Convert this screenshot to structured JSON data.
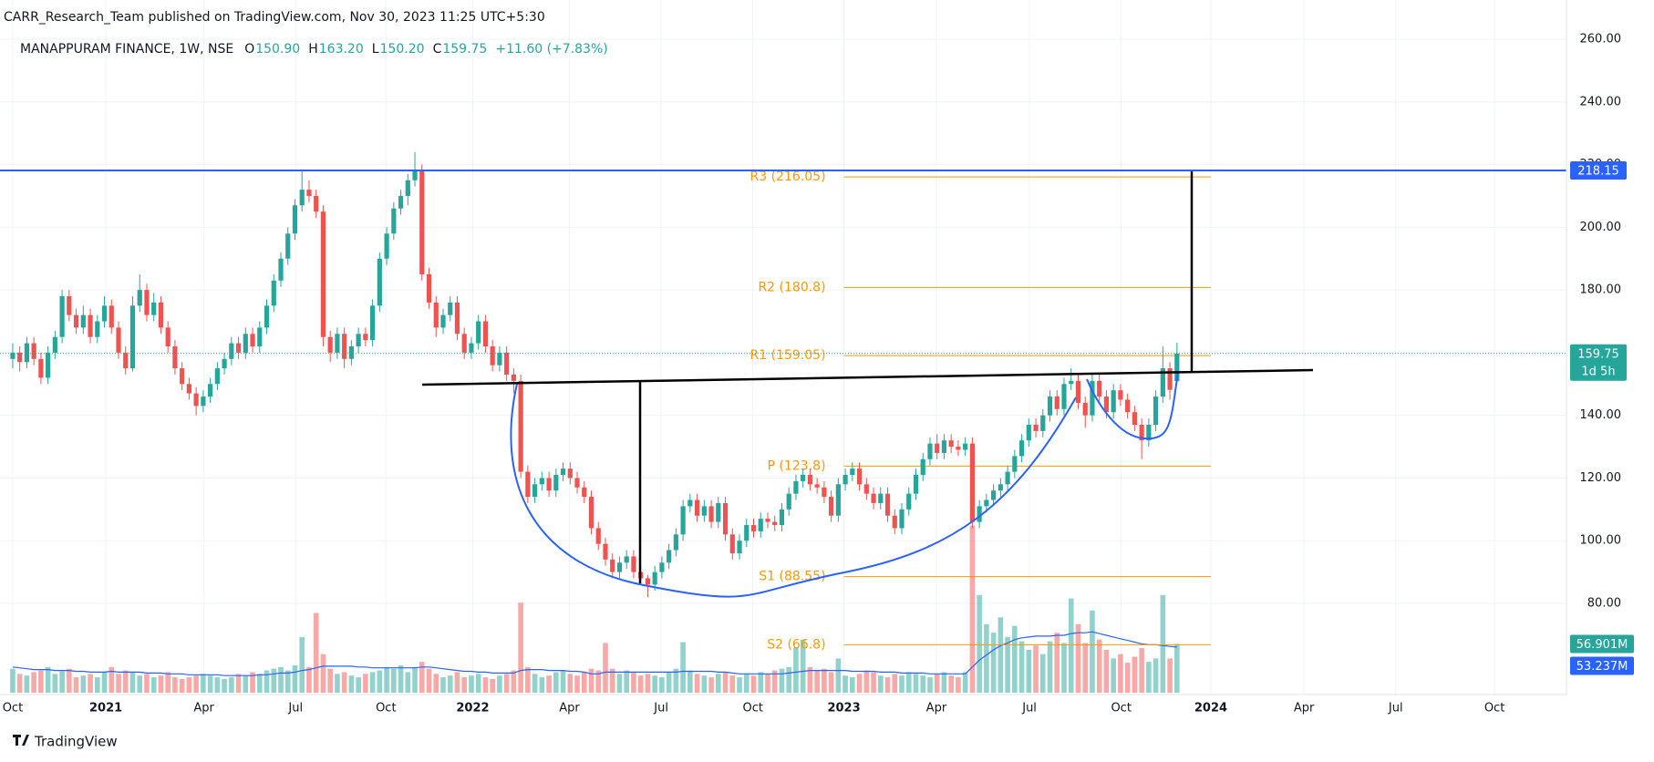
{
  "chart_data": {
    "type": "candlestick",
    "attribution": "CARR_Research_Team published on TradingView.com, Nov 30, 2023 11:25 UTC+5:30",
    "symbol": "MANAPPURAM FINANCE, 1W, NSE",
    "legend": [
      {
        "key": "O",
        "value": "150.90"
      },
      {
        "key": "H",
        "value": "163.20"
      },
      {
        "key": "L",
        "value": "150.20"
      },
      {
        "key": "C",
        "value": "159.75"
      },
      {
        "key": "",
        "value": "+11.60 (+7.83%)"
      }
    ],
    "footer": "TradingView",
    "up_color": "#26a69a",
    "down_color": "#ef5350",
    "volume_up_color": "rgba(38,166,154,0.5)",
    "volume_down_color": "rgba(239,83,80,0.5)",
    "volume_ma_color": "#2962ff",
    "grid": true,
    "xlim": [
      -1.8,
      220.2
    ],
    "xticks": [
      {
        "value": 0,
        "label": "Oct"
      },
      {
        "value": 13.2,
        "label": "2021"
      },
      {
        "value": 27.1,
        "label": "Apr"
      },
      {
        "value": 40.1,
        "label": "Jul"
      },
      {
        "value": 52.9,
        "label": "Oct"
      },
      {
        "value": 65.2,
        "label": "2022"
      },
      {
        "value": 78.9,
        "label": "Apr"
      },
      {
        "value": 91.9,
        "label": "Jul"
      },
      {
        "value": 104.9,
        "label": "Oct"
      },
      {
        "value": 117.8,
        "label": "2023"
      },
      {
        "value": 130.9,
        "label": "Apr"
      },
      {
        "value": 144.1,
        "label": "Jul"
      },
      {
        "value": 157.1,
        "label": "Oct"
      },
      {
        "value": 169.8,
        "label": "2024"
      },
      {
        "value": 183,
        "label": "Apr"
      },
      {
        "value": 196,
        "label": "Jul"
      },
      {
        "value": 210,
        "label": "Oct"
      }
    ],
    "ylim": [
      51.5,
      266.7
    ],
    "yticks": [
      {
        "value": 80,
        "label": "80.00"
      },
      {
        "value": 100,
        "label": "100.00"
      },
      {
        "value": 120,
        "label": "120.00"
      },
      {
        "value": 140,
        "label": "140.00"
      },
      {
        "value": 160,
        "label": "160.00"
      },
      {
        "value": 180,
        "label": "180.00"
      },
      {
        "value": 200,
        "label": "200.00"
      },
      {
        "value": 220,
        "label": "220.00"
      },
      {
        "value": 240,
        "label": "240.00"
      },
      {
        "value": 260,
        "label": "260.00"
      }
    ],
    "volume_ylim": [
      0,
      787
    ],
    "hline": {
      "value": 218.15,
      "label": "218.15",
      "color": "#2962ff"
    },
    "last_price": {
      "value": 159.75,
      "label": "159.75",
      "countdown": "1d 5h"
    },
    "pivot_color": "#ff9800",
    "pivot_range": [
      117.8,
      169.8
    ],
    "pivots": [
      {
        "value": 216.05,
        "label": "R3 (216.05)"
      },
      {
        "value": 180.8,
        "label": "R2 (180.8)"
      },
      {
        "value": 159.05,
        "label": "R1 (159.05)"
      },
      {
        "value": 123.8,
        "label": "P (123.8)"
      },
      {
        "value": 88.55,
        "label": "S1 (88.55)"
      },
      {
        "value": 66.8,
        "label": "S2 (66.8)"
      }
    ],
    "volume_label": "56.901M",
    "volume_ma_label": "53.237M",
    "candles": [
      [
        158,
        163,
        155,
        160
      ],
      [
        160,
        162,
        154,
        157
      ],
      [
        157,
        165,
        155,
        163
      ],
      [
        163,
        165,
        156,
        158
      ],
      [
        158,
        160,
        150,
        152
      ],
      [
        152,
        162,
        150,
        160
      ],
      [
        160,
        167,
        158,
        165
      ],
      [
        165,
        180,
        163,
        178
      ],
      [
        178,
        180,
        170,
        172
      ],
      [
        172,
        174,
        166,
        168
      ],
      [
        168,
        175,
        166,
        172
      ],
      [
        172,
        174,
        163,
        165
      ],
      [
        165,
        172,
        163,
        170
      ],
      [
        170,
        178,
        168,
        175
      ],
      [
        175,
        177,
        166,
        168
      ],
      [
        168,
        170,
        158,
        160
      ],
      [
        160,
        162,
        153,
        155
      ],
      [
        155,
        178,
        154,
        175
      ],
      [
        175,
        185,
        173,
        180
      ],
      [
        180,
        182,
        170,
        172
      ],
      [
        172,
        179,
        170,
        176
      ],
      [
        176,
        178,
        166,
        168
      ],
      [
        168,
        170,
        160,
        162
      ],
      [
        162,
        164,
        153,
        155
      ],
      [
        155,
        157,
        148,
        150
      ],
      [
        150,
        152,
        145,
        147
      ],
      [
        147,
        149,
        140,
        143
      ],
      [
        143,
        148,
        141,
        146
      ],
      [
        146,
        152,
        144,
        150
      ],
      [
        150,
        157,
        148,
        155
      ],
      [
        155,
        160,
        153,
        158
      ],
      [
        158,
        165,
        156,
        163
      ],
      [
        163,
        165,
        158,
        160
      ],
      [
        160,
        168,
        158,
        166
      ],
      [
        166,
        168,
        160,
        162
      ],
      [
        162,
        170,
        160,
        168
      ],
      [
        168,
        177,
        166,
        175
      ],
      [
        175,
        185,
        173,
        183
      ],
      [
        183,
        192,
        181,
        190
      ],
      [
        190,
        200,
        188,
        198
      ],
      [
        198,
        209,
        196,
        207
      ],
      [
        207,
        218,
        205,
        212
      ],
      [
        212,
        215,
        208,
        210
      ],
      [
        210,
        212,
        203,
        205
      ],
      [
        205,
        207,
        162,
        165
      ],
      [
        165,
        167,
        157,
        160
      ],
      [
        160,
        168,
        158,
        166
      ],
      [
        166,
        168,
        155,
        158
      ],
      [
        158,
        164,
        156,
        162
      ],
      [
        162,
        168,
        160,
        166
      ],
      [
        166,
        168,
        162,
        164
      ],
      [
        164,
        177,
        162,
        175
      ],
      [
        175,
        192,
        173,
        190
      ],
      [
        190,
        200,
        188,
        198
      ],
      [
        198,
        208,
        196,
        206
      ],
      [
        206,
        212,
        204,
        210
      ],
      [
        210,
        217,
        207,
        215
      ],
      [
        215,
        224,
        213,
        218
      ],
      [
        218,
        220,
        183,
        185
      ],
      [
        185,
        187,
        174,
        176
      ],
      [
        176,
        178,
        165,
        168
      ],
      [
        168,
        174,
        166,
        172
      ],
      [
        172,
        178,
        170,
        176
      ],
      [
        176,
        178,
        164,
        166
      ],
      [
        166,
        168,
        158,
        160
      ],
      [
        160,
        165,
        158,
        163
      ],
      [
        163,
        172,
        161,
        170
      ],
      [
        170,
        172,
        160,
        162
      ],
      [
        162,
        164,
        154,
        156
      ],
      [
        156,
        162,
        154,
        160
      ],
      [
        160,
        162,
        151,
        153
      ],
      [
        153,
        155,
        147,
        151
      ],
      [
        151,
        153,
        120,
        122
      ],
      [
        122,
        124,
        112,
        114
      ],
      [
        114,
        120,
        112,
        118
      ],
      [
        118,
        122,
        116,
        120
      ],
      [
        120,
        122,
        114,
        116
      ],
      [
        116,
        123,
        114,
        121
      ],
      [
        121,
        125,
        119,
        123
      ],
      [
        123,
        125,
        118,
        120
      ],
      [
        120,
        122,
        115,
        117
      ],
      [
        117,
        119,
        112,
        114
      ],
      [
        114,
        116,
        102,
        104
      ],
      [
        104,
        106,
        97,
        99
      ],
      [
        99,
        101,
        92,
        94
      ],
      [
        94,
        96,
        88,
        90
      ],
      [
        90,
        95,
        88,
        93
      ],
      [
        93,
        97,
        91,
        95
      ],
      [
        95,
        97,
        88,
        90
      ],
      [
        90,
        92,
        86,
        88
      ],
      [
        88,
        89,
        82,
        86
      ],
      [
        86,
        92,
        84,
        90
      ],
      [
        90,
        95,
        88,
        93
      ],
      [
        93,
        99,
        91,
        97
      ],
      [
        97,
        104,
        95,
        102
      ],
      [
        102,
        113,
        100,
        111
      ],
      [
        111,
        115,
        109,
        113
      ],
      [
        113,
        115,
        106,
        108
      ],
      [
        108,
        113,
        106,
        111
      ],
      [
        111,
        113,
        104,
        106
      ],
      [
        106,
        114,
        104,
        112
      ],
      [
        112,
        114,
        100,
        102
      ],
      [
        102,
        104,
        94,
        96
      ],
      [
        96,
        102,
        94,
        100
      ],
      [
        100,
        107,
        98,
        105
      ],
      [
        105,
        107,
        101,
        103
      ],
      [
        103,
        109,
        101,
        107
      ],
      [
        107,
        109,
        104,
        106
      ],
      [
        106,
        108,
        103,
        105
      ],
      [
        105,
        112,
        103,
        110
      ],
      [
        110,
        117,
        108,
        115
      ],
      [
        115,
        121,
        113,
        119
      ],
      [
        119,
        123,
        117,
        121
      ],
      [
        121,
        123,
        116,
        118
      ],
      [
        118,
        120,
        115,
        117
      ],
      [
        117,
        119,
        112,
        114
      ],
      [
        114,
        116,
        106,
        108
      ],
      [
        108,
        120,
        106,
        118
      ],
      [
        118,
        123,
        116,
        121
      ],
      [
        121,
        125,
        119,
        123
      ],
      [
        123,
        125,
        116,
        118
      ],
      [
        118,
        120,
        113,
        115
      ],
      [
        115,
        117,
        110,
        112
      ],
      [
        112,
        117,
        110,
        115
      ],
      [
        115,
        117,
        106,
        108
      ],
      [
        108,
        110,
        102,
        104
      ],
      [
        104,
        112,
        102,
        110
      ],
      [
        110,
        117,
        108,
        115
      ],
      [
        115,
        123,
        113,
        121
      ],
      [
        121,
        128,
        119,
        126
      ],
      [
        126,
        133,
        124,
        131
      ],
      [
        131,
        134,
        126,
        128
      ],
      [
        128,
        134,
        126,
        132
      ],
      [
        132,
        134,
        128,
        130
      ],
      [
        130,
        132,
        127,
        129
      ],
      [
        129,
        133,
        127,
        131
      ],
      [
        131,
        133,
        104,
        106
      ],
      [
        106,
        113,
        104,
        111
      ],
      [
        111,
        115,
        109,
        113
      ],
      [
        113,
        118,
        111,
        116
      ],
      [
        116,
        120,
        114,
        118
      ],
      [
        118,
        124,
        116,
        122
      ],
      [
        122,
        129,
        120,
        127
      ],
      [
        127,
        134,
        125,
        132
      ],
      [
        132,
        139,
        130,
        137
      ],
      [
        137,
        139,
        133,
        135
      ],
      [
        135,
        142,
        133,
        140
      ],
      [
        140,
        148,
        138,
        146
      ],
      [
        146,
        148,
        140,
        142
      ],
      [
        142,
        152,
        140,
        150
      ],
      [
        150,
        155,
        148,
        151
      ],
      [
        151,
        153,
        142,
        144
      ],
      [
        144,
        146,
        136,
        140
      ],
      [
        140,
        153,
        138,
        151
      ],
      [
        151,
        153,
        144,
        146
      ],
      [
        146,
        148,
        139,
        141
      ],
      [
        141,
        150,
        139,
        148
      ],
      [
        148,
        150,
        143,
        145
      ],
      [
        145,
        147,
        139,
        141
      ],
      [
        141,
        143,
        135,
        137
      ],
      [
        137,
        139,
        126,
        132
      ],
      [
        132,
        139,
        130,
        137
      ],
      [
        137,
        148,
        135,
        146
      ],
      [
        146,
        162,
        144,
        155
      ],
      [
        155,
        157,
        145,
        148.15
      ],
      [
        150.9,
        163.2,
        150.2,
        159.75
      ]
    ],
    "volume": [
      28,
      22,
      20,
      24,
      26,
      30,
      22,
      25,
      28,
      18,
      20,
      22,
      18,
      24,
      30,
      22,
      26,
      24,
      20,
      22,
      18,
      20,
      24,
      18,
      16,
      18,
      20,
      22,
      20,
      18,
      16,
      18,
      22,
      20,
      24,
      22,
      26,
      28,
      30,
      26,
      32,
      65,
      30,
      93,
      45,
      28,
      22,
      24,
      20,
      18,
      22,
      24,
      26,
      30,
      28,
      32,
      24,
      30,
      36,
      28,
      22,
      18,
      20,
      24,
      18,
      20,
      22,
      18,
      16,
      20,
      22,
      26,
      105,
      30,
      22,
      18,
      20,
      24,
      26,
      22,
      20,
      24,
      28,
      26,
      58,
      28,
      22,
      26,
      24,
      20,
      22,
      20,
      18,
      24,
      28,
      59,
      26,
      22,
      20,
      18,
      22,
      24,
      20,
      18,
      22,
      20,
      24,
      22,
      26,
      28,
      30,
      53,
      62,
      30,
      26,
      28,
      24,
      40,
      20,
      18,
      22,
      26,
      24,
      20,
      18,
      22,
      20,
      24,
      22,
      20,
      18,
      22,
      24,
      20,
      18,
      24,
      195,
      114,
      80,
      70,
      88,
      65,
      78,
      60,
      50,
      55,
      45,
      60,
      70,
      58,
      110,
      80,
      58,
      96,
      62,
      50,
      40,
      45,
      35,
      42,
      52,
      36,
      40,
      114,
      40,
      56.901
    ],
    "volume_ma": [
      30,
      29,
      28,
      27,
      27,
      27,
      26,
      26,
      26,
      25,
      25,
      24,
      24,
      24,
      25,
      24,
      24,
      24,
      24,
      23,
      23,
      23,
      22,
      22,
      22,
      21,
      21,
      21,
      21,
      21,
      20,
      20,
      20,
      20,
      20,
      21,
      21,
      22,
      23,
      23,
      24,
      26,
      27,
      29,
      31,
      31,
      31,
      31,
      31,
      30,
      30,
      29,
      29,
      29,
      29,
      29,
      29,
      29,
      30,
      30,
      29,
      28,
      27,
      26,
      25,
      25,
      24,
      24,
      23,
      23,
      23,
      23,
      26,
      27,
      27,
      27,
      26,
      26,
      26,
      25,
      25,
      24,
      22,
      22,
      24,
      24,
      24,
      24,
      24,
      24,
      24,
      24,
      24,
      24,
      24,
      25,
      25,
      25,
      25,
      25,
      24,
      24,
      23,
      22,
      22,
      22,
      22,
      22,
      22,
      22,
      23,
      24,
      25,
      26,
      26,
      26,
      26,
      26,
      26,
      25,
      25,
      25,
      25,
      24,
      24,
      24,
      23,
      23,
      23,
      23,
      22,
      22,
      22,
      22,
      22,
      22,
      30,
      38,
      44,
      50,
      55,
      58,
      62,
      64,
      65,
      66,
      66,
      66,
      67,
      67,
      69,
      70,
      70,
      71,
      69,
      67,
      65,
      63,
      61,
      59,
      57,
      56,
      56,
      55,
      54,
      53.237
    ]
  }
}
